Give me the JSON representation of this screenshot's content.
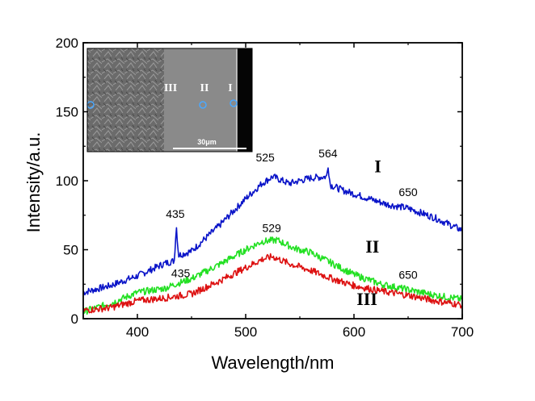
{
  "chart_data": {
    "type": "line",
    "title": "",
    "xlabel": "Wavelength/nm",
    "ylabel": "Intensity/a.u.",
    "xlim": [
      350,
      700
    ],
    "ylim": [
      0,
      200
    ],
    "x_ticks": [
      400,
      500,
      600,
      700
    ],
    "x_tick_labels": [
      "400",
      "500",
      "600",
      "700"
    ],
    "y_ticks": [
      0,
      50,
      100,
      150,
      200
    ],
    "y_tick_labels": [
      "0",
      "50",
      "100",
      "150",
      "200"
    ],
    "grid": false,
    "series": [
      {
        "name": "I",
        "color": "#0a14c8",
        "x": [
          350,
          375,
          400,
          425,
          434,
          436,
          438,
          450,
          475,
          500,
          515,
          525,
          540,
          560,
          575,
          576,
          578,
          590,
          610,
          630,
          650,
          675,
          700
        ],
        "values": [
          19,
          24,
          31,
          40,
          42,
          67,
          46,
          49,
          67,
          87,
          98,
          103,
          98,
          102,
          103,
          112,
          97,
          93,
          88,
          83,
          80,
          73,
          64
        ]
      },
      {
        "name": "II",
        "color": "#22e022",
        "x": [
          350,
          375,
          400,
          425,
          435,
          450,
          475,
          500,
          515,
          529,
          545,
          560,
          580,
          600,
          625,
          650,
          675,
          700
        ],
        "values": [
          5,
          11,
          19,
          22,
          25,
          29,
          39,
          50,
          56,
          57,
          51,
          48,
          40,
          32,
          25,
          21,
          17,
          14
        ]
      },
      {
        "name": "III",
        "color": "#dd1111",
        "x": [
          350,
          375,
          400,
          425,
          450,
          475,
          500,
          515,
          525,
          540,
          560,
          580,
          600,
          625,
          650,
          675,
          700
        ],
        "values": [
          6,
          8,
          13,
          15,
          18,
          27,
          37,
          43,
          45,
          40,
          35,
          29,
          24,
          20,
          17,
          13,
          10
        ]
      }
    ],
    "series_labels": [
      {
        "text": "I",
        "x": 622,
        "y": 106
      },
      {
        "text": "II",
        "x": 617,
        "y": 48
      },
      {
        "text": "III",
        "x": 612,
        "y": 10
      }
    ],
    "annotations": [
      {
        "text": "525",
        "x": 518,
        "y": 114
      },
      {
        "text": "564",
        "x": 576,
        "y": 117
      },
      {
        "text": "650",
        "x": 650,
        "y": 89
      },
      {
        "text": "435",
        "x": 435,
        "y": 73
      },
      {
        "text": "529",
        "x": 524,
        "y": 63
      },
      {
        "text": "435",
        "x": 440,
        "y": 30
      },
      {
        "text": "650",
        "x": 650,
        "y": 29
      }
    ],
    "inset": {
      "type": "micrograph",
      "markers": [
        "III",
        "II",
        "I"
      ],
      "scale_bar_label": "30μm"
    }
  }
}
